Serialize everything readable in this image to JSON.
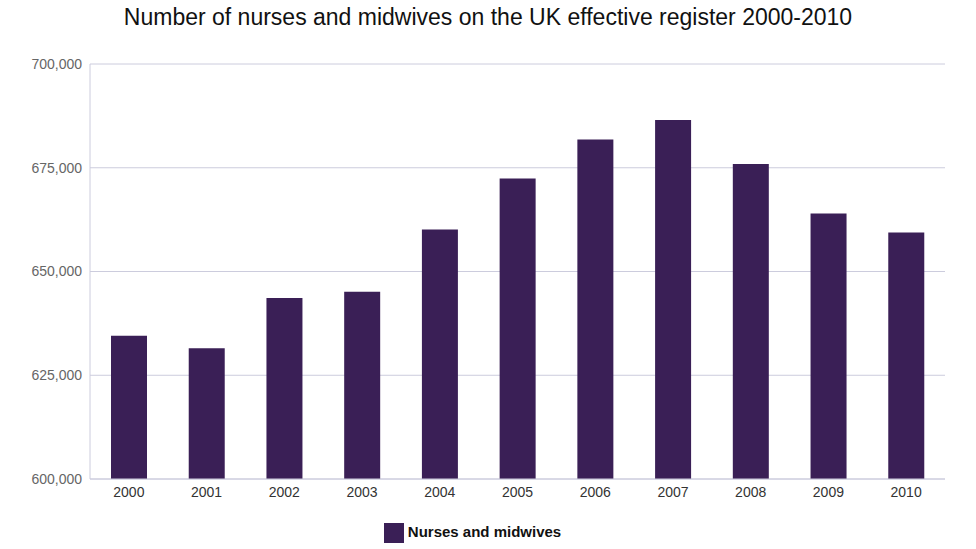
{
  "chart_data": {
    "type": "bar",
    "title": "Number of nurses and midwives on the UK effective register 2000-2010",
    "categories": [
      "2000",
      "2001",
      "2002",
      "2003",
      "2004",
      "2005",
      "2006",
      "2007",
      "2008",
      "2009",
      "2010"
    ],
    "series": [
      {
        "name": "Nurses and midwives",
        "color": "#3a1f56",
        "values": [
          634500,
          631500,
          643600,
          645100,
          660100,
          672400,
          681800,
          686500,
          675900,
          664000,
          659400
        ]
      }
    ],
    "ylim": [
      600000,
      700000
    ],
    "yticks": [
      {
        "value": 600000,
        "label": "600,000"
      },
      {
        "value": 625000,
        "label": "625,000"
      },
      {
        "value": 650000,
        "label": "650,000"
      },
      {
        "value": 675000,
        "label": "675,000"
      },
      {
        "value": 700000,
        "label": "700,000"
      }
    ],
    "grid": true,
    "legend": "bottom"
  }
}
